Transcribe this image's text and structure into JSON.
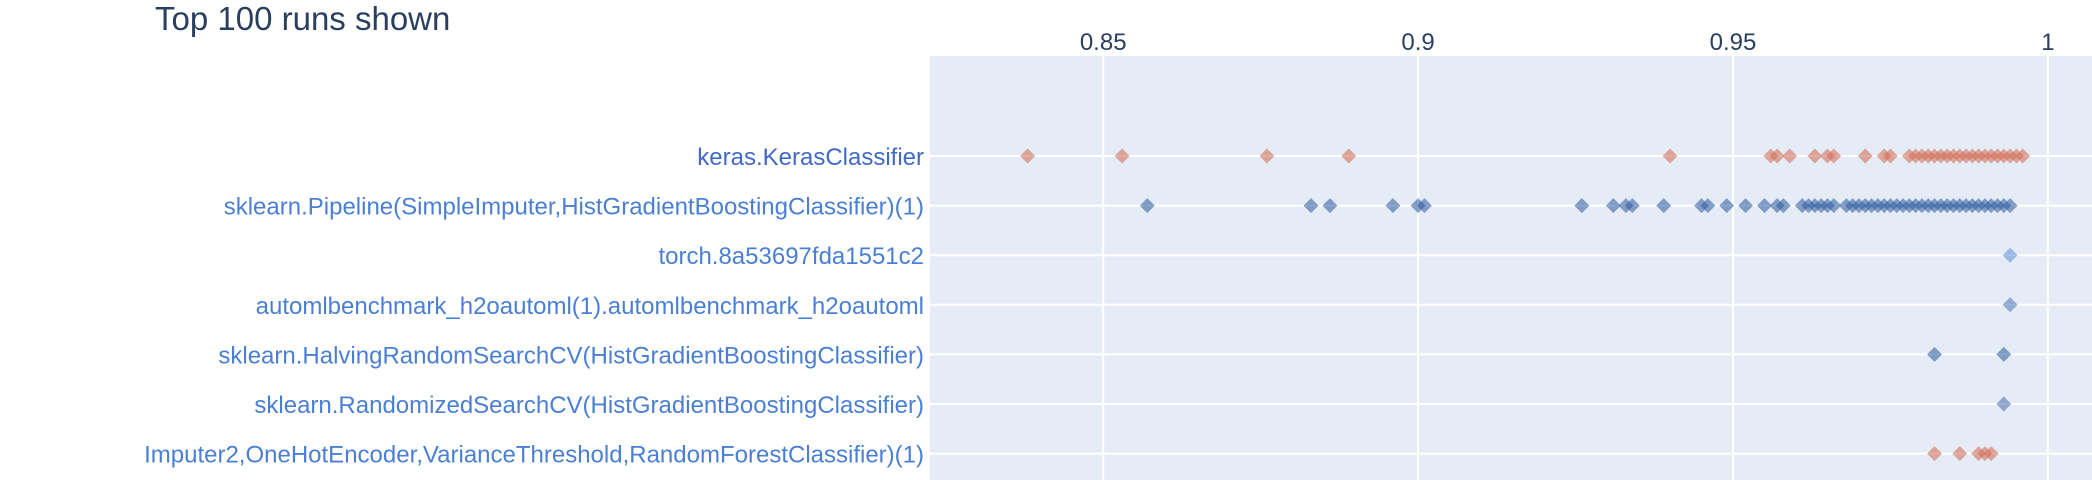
{
  "title": "Top 100 runs shown",
  "chart_data": {
    "type": "scatter",
    "title": "Top 100 runs shown",
    "xlabel": "",
    "ylabel": "",
    "xlim": [
      0.8225,
      1.007
    ],
    "x_ticks": [
      "0.85",
      "0.9",
      "0.95",
      "1"
    ],
    "x_tick_values": [
      0.85,
      0.9,
      0.95,
      1.0
    ],
    "x_axis_side": "top",
    "grid": true,
    "marker": "diamond",
    "categories": [
      "keras.KerasClassifier",
      "sklearn.Pipeline(SimpleImputer,HistGradientBoostingClassifier)(1)",
      "torch.8a53697fda1551c2",
      "automlbenchmark_h2oautoml(1).automlbenchmark_h2oautoml",
      "sklearn.HalvingRandomSearchCV(HistGradientBoostingClassifier)",
      "sklearn.RandomizedSearchCV(HistGradientBoostingClassifier)",
      "Imputer2,OneHotEncoder,VarianceThreshold,RandomForestClassifier)(1)"
    ],
    "label_colors": [
      "#4169c8",
      "#4a7fd4",
      "#4a7fd4",
      "#4a7fd4",
      "#4a7fd4",
      "#4a7fd4",
      "#4a7fd4"
    ],
    "series": [
      {
        "category_index": 0,
        "color": "#d2674f",
        "values": [
          0.838,
          0.853,
          0.876,
          0.889,
          0.94,
          0.956,
          0.957,
          0.959,
          0.963,
          0.965,
          0.966,
          0.971,
          0.974,
          0.975,
          0.978,
          0.979,
          0.98,
          0.981,
          0.982,
          0.983,
          0.984,
          0.985,
          0.986,
          0.987,
          0.988,
          0.989,
          0.99,
          0.991,
          0.992,
          0.993,
          0.994,
          0.995,
          0.996
        ]
      },
      {
        "category_index": 1,
        "color": "#2c5a9c",
        "values": [
          0.857,
          0.883,
          0.886,
          0.896,
          0.9,
          0.901,
          0.926,
          0.931,
          0.933,
          0.934,
          0.939,
          0.945,
          0.946,
          0.949,
          0.952,
          0.955,
          0.957,
          0.958,
          0.961,
          0.962,
          0.963,
          0.964,
          0.965,
          0.966,
          0.968,
          0.969,
          0.97,
          0.971,
          0.972,
          0.973,
          0.974,
          0.975,
          0.976,
          0.977,
          0.978,
          0.979,
          0.98,
          0.981,
          0.982,
          0.983,
          0.984,
          0.985,
          0.986,
          0.987,
          0.988,
          0.989,
          0.99,
          0.991,
          0.992,
          0.993,
          0.994
        ]
      },
      {
        "category_index": 2,
        "color": "#5b8fd6",
        "values": [
          0.994
        ]
      },
      {
        "category_index": 3,
        "color": "#4a74b8",
        "values": [
          0.994
        ]
      },
      {
        "category_index": 4,
        "color": "#2c5a9c",
        "values": [
          0.982,
          0.993
        ]
      },
      {
        "category_index": 5,
        "color": "#4a6ca8",
        "values": [
          0.993
        ]
      },
      {
        "category_index": 6,
        "color": "#d2674f",
        "values": [
          0.982,
          0.986,
          0.989,
          0.99,
          0.991
        ]
      }
    ]
  }
}
